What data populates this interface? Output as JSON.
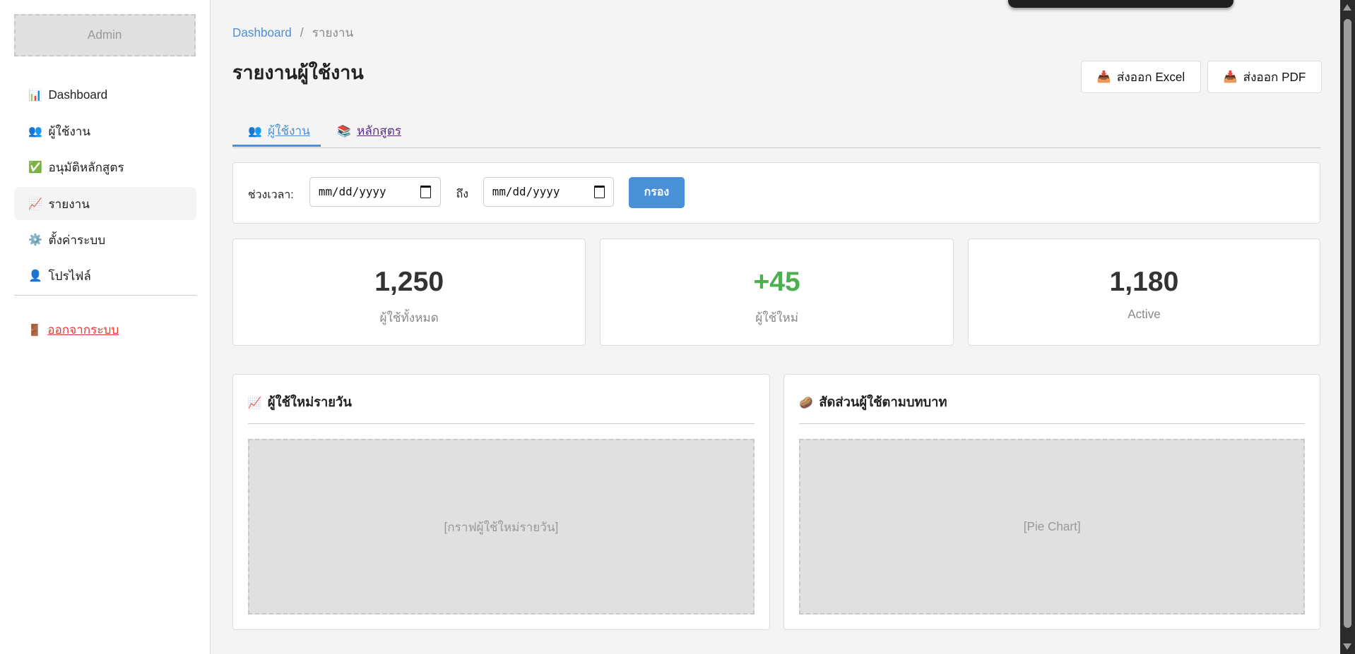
{
  "sidebar": {
    "logo": "Admin",
    "items": [
      {
        "icon": "📊",
        "label": "Dashboard",
        "active": false
      },
      {
        "icon": "👥",
        "label": "ผู้ใช้งาน",
        "active": false
      },
      {
        "icon": "✅",
        "label": "อนุมัติหลักสูตร",
        "active": false
      },
      {
        "icon": "📈",
        "label": "รายงาน",
        "active": true
      },
      {
        "icon": "⚙️",
        "label": "ตั้งค่าระบบ",
        "active": false
      },
      {
        "icon": "👤",
        "label": "โปรไฟล์",
        "active": false
      }
    ],
    "logout": {
      "icon": "🚪",
      "label": "ออกจากระบบ"
    }
  },
  "breadcrumb": {
    "home": "Dashboard",
    "sep": "/",
    "current": "รายงาน"
  },
  "page_title": "รายงานผู้ใช้งาน",
  "actions": {
    "icon": "📥",
    "excel": "ส่งออก Excel",
    "pdf": "ส่งออก PDF"
  },
  "tabs": [
    {
      "icon": "👥",
      "label": "ผู้ใช้งาน",
      "active": true
    },
    {
      "icon": "📚",
      "label": "หลักสูตร",
      "active": false
    }
  ],
  "filter": {
    "label": "ช่วงเวลา:",
    "from_placeholder": "mm/dd/yyyy",
    "to_label": "ถึง",
    "to_placeholder": "mm/dd/yyyy",
    "button": "กรอง"
  },
  "stats": [
    {
      "value": "1,250",
      "label": "ผู้ใช้ทั้งหมด",
      "color": "#333333"
    },
    {
      "value": "+45",
      "label": "ผู้ใช้ใหม่",
      "color": "#4caf50"
    },
    {
      "value": "1,180",
      "label": "Active",
      "color": "#333333"
    }
  ],
  "charts": [
    {
      "icon": "📈",
      "title": "ผู้ใช้ใหม่รายวัน",
      "placeholder": "[กราฟผู้ใช้ใหม่รายวัน]"
    },
    {
      "icon": "🥔",
      "title": "สัดส่วนผู้ใช้ตามบทบาท",
      "placeholder": "[Pie Chart]"
    }
  ],
  "colors": {
    "accent": "#4a90d9",
    "danger": "#e53935",
    "positive": "#4caf50"
  }
}
